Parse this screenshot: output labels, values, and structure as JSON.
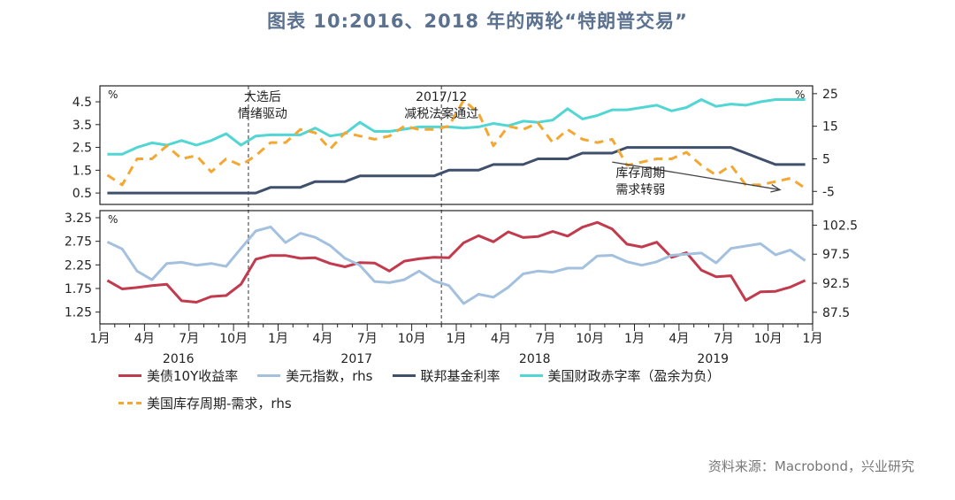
{
  "title": "图表 10:2016、2018 年的两轮“特朗普交易”",
  "source": "资料来源：Macrobond，兴业研究",
  "colors": {
    "treasury": "#c23a4d",
    "usd": "#a3c1df",
    "fed": "#3f4f6c",
    "deficit": "#52d6d4",
    "inventory": "#f2a832",
    "annotation": "#222222",
    "axis": "#222222",
    "title": "#5b7190",
    "source": "#777777"
  },
  "chart_data": [
    {
      "type": "line",
      "panel": "top",
      "left_axis": {
        "unit": "%",
        "ylim": [
          0.0,
          5.2
        ],
        "ticks": [
          "0.5",
          "1.5",
          "2.5",
          "3.5",
          "4.5"
        ]
      },
      "right_axis": {
        "unit": "%",
        "ylim": [
          -9.0,
          27.4
        ],
        "ticks": [
          "-5",
          "5",
          "15",
          "25"
        ]
      },
      "x": [
        "2016-01",
        "2016-02",
        "2016-03",
        "2016-04",
        "2016-05",
        "2016-06",
        "2016-07",
        "2016-08",
        "2016-09",
        "2016-10",
        "2016-11",
        "2016-12",
        "2017-01",
        "2017-02",
        "2017-03",
        "2017-04",
        "2017-05",
        "2017-06",
        "2017-07",
        "2017-08",
        "2017-09",
        "2017-10",
        "2017-11",
        "2017-12",
        "2018-01",
        "2018-02",
        "2018-03",
        "2018-04",
        "2018-05",
        "2018-06",
        "2018-07",
        "2018-08",
        "2018-09",
        "2018-10",
        "2018-11",
        "2018-12",
        "2019-01",
        "2019-02",
        "2019-03",
        "2019-04",
        "2019-05",
        "2019-06",
        "2019-07",
        "2019-08",
        "2019-09",
        "2019-10",
        "2019-11",
        "2019-12"
      ],
      "series": [
        {
          "name": "联邦基金利率",
          "axis": "left",
          "color_key": "fed",
          "values": [
            0.5,
            0.5,
            0.5,
            0.5,
            0.5,
            0.5,
            0.5,
            0.5,
            0.5,
            0.5,
            0.5,
            0.75,
            0.75,
            0.75,
            1.0,
            1.0,
            1.0,
            1.25,
            1.25,
            1.25,
            1.25,
            1.25,
            1.25,
            1.5,
            1.5,
            1.5,
            1.75,
            1.75,
            1.75,
            2.0,
            2.0,
            2.0,
            2.25,
            2.25,
            2.25,
            2.5,
            2.5,
            2.5,
            2.5,
            2.5,
            2.5,
            2.5,
            2.5,
            2.25,
            2.0,
            1.75,
            1.75,
            1.75
          ]
        },
        {
          "name": "美国财政赤字率（盈余为负）",
          "axis": "left",
          "color_key": "deficit",
          "values": [
            2.2,
            2.2,
            2.5,
            2.7,
            2.6,
            2.8,
            2.6,
            2.8,
            3.1,
            2.6,
            3.0,
            3.05,
            3.05,
            3.05,
            3.35,
            3.0,
            3.1,
            3.6,
            3.2,
            3.2,
            3.3,
            3.4,
            3.4,
            3.4,
            3.35,
            3.4,
            3.55,
            3.45,
            3.65,
            3.6,
            3.7,
            4.2,
            3.75,
            3.9,
            4.15,
            4.15,
            4.25,
            4.35,
            4.1,
            4.25,
            4.6,
            4.3,
            4.4,
            4.35,
            4.5,
            4.6,
            4.6,
            4.6
          ]
        },
        {
          "name": "美国库存周期-需求，rhs",
          "axis": "right",
          "color_key": "inventory",
          "values": [
            0,
            -3,
            5,
            5,
            9,
            5,
            6,
            1,
            5,
            3,
            6,
            10,
            10,
            14,
            13,
            8,
            13,
            12,
            11,
            12,
            15,
            14,
            14,
            15,
            23,
            19,
            9,
            15,
            14,
            16,
            10,
            14,
            11,
            10,
            11,
            3,
            4,
            5,
            5,
            7,
            3,
            0,
            3,
            -3,
            -3,
            -2,
            -1,
            -4
          ]
        }
      ],
      "annotations": [
        {
          "label": [
            "大选后",
            "情绪驱动"
          ],
          "at": "2016-11"
        },
        {
          "label": [
            "2017/12",
            "减税法案通过"
          ],
          "at": "2017-12"
        },
        {
          "label": [
            "库存周期",
            "需求转弱"
          ],
          "arrow_from": [
            "2018-11",
            4.0
          ],
          "arrow_to": [
            "2019-12",
            -4.5
          ]
        }
      ]
    },
    {
      "type": "line",
      "panel": "bottom",
      "left_axis": {
        "unit": "%",
        "ylim": [
          1.0,
          3.4
        ],
        "ticks": [
          "1.25",
          "1.75",
          "2.25",
          "2.75",
          "3.25"
        ]
      },
      "right_axis": {
        "ylim": [
          85.5,
          105.0
        ],
        "ticks": [
          "87.5",
          "92.5",
          "97.5",
          "102.5"
        ]
      },
      "x": [
        "2016-01",
        "2016-02",
        "2016-03",
        "2016-04",
        "2016-05",
        "2016-06",
        "2016-07",
        "2016-08",
        "2016-09",
        "2016-10",
        "2016-11",
        "2016-12",
        "2017-01",
        "2017-02",
        "2017-03",
        "2017-04",
        "2017-05",
        "2017-06",
        "2017-07",
        "2017-08",
        "2017-09",
        "2017-10",
        "2017-11",
        "2017-12",
        "2018-01",
        "2018-02",
        "2018-03",
        "2018-04",
        "2018-05",
        "2018-06",
        "2018-07",
        "2018-08",
        "2018-09",
        "2018-10",
        "2018-11",
        "2018-12",
        "2019-01",
        "2019-02",
        "2019-03",
        "2019-04",
        "2019-05",
        "2019-06",
        "2019-07",
        "2019-08",
        "2019-09",
        "2019-10",
        "2019-11",
        "2019-12"
      ],
      "series": [
        {
          "name": "美债10Y收益率",
          "axis": "left",
          "color_key": "treasury",
          "values": [
            1.92,
            1.74,
            1.77,
            1.81,
            1.84,
            1.49,
            1.46,
            1.58,
            1.6,
            1.84,
            2.37,
            2.45,
            2.45,
            2.39,
            2.4,
            2.28,
            2.21,
            2.3,
            2.29,
            2.12,
            2.33,
            2.38,
            2.41,
            2.4,
            2.72,
            2.87,
            2.74,
            2.95,
            2.83,
            2.85,
            2.96,
            2.86,
            3.05,
            3.15,
            3.01,
            2.69,
            2.63,
            2.73,
            2.41,
            2.51,
            2.14,
            2.0,
            2.02,
            1.5,
            1.68,
            1.69,
            1.78,
            1.92
          ]
        },
        {
          "name": "美元指数，rhs",
          "axis": "right",
          "color_key": "usd",
          "values": [
            99.6,
            98.4,
            94.6,
            93.1,
            95.9,
            96.1,
            95.6,
            95.9,
            95.4,
            98.5,
            101.5,
            102.2,
            99.5,
            101.1,
            100.4,
            99.0,
            96.8,
            95.6,
            92.8,
            92.6,
            93.1,
            94.6,
            92.9,
            92.1,
            89.0,
            90.6,
            90.1,
            91.8,
            94.1,
            94.6,
            94.4,
            95.1,
            95.1,
            97.2,
            97.3,
            96.2,
            95.6,
            96.2,
            97.3,
            97.5,
            97.7,
            96.0,
            98.5,
            98.9,
            99.3,
            97.4,
            98.2,
            96.4
          ]
        }
      ]
    }
  ],
  "x_axis": {
    "month_labels": [
      "1月",
      "4月",
      "7月",
      "10月",
      "1月",
      "4月",
      "7月",
      "10月",
      "1月",
      "4月",
      "7月",
      "10月",
      "1月",
      "4月",
      "7月",
      "10月",
      "1月"
    ],
    "year_labels": [
      "2016",
      "2017",
      "2018",
      "2019"
    ]
  },
  "legend": [
    {
      "name": "美债10Y收益率",
      "color_key": "treasury",
      "style": "solid"
    },
    {
      "name": "美元指数，rhs",
      "color_key": "usd",
      "style": "solid"
    },
    {
      "name": "联邦基金利率",
      "color_key": "fed",
      "style": "solid"
    },
    {
      "name": "美国财政赤字率（盈余为负）",
      "color_key": "deficit",
      "style": "solid"
    },
    {
      "name": "美国库存周期-需求，rhs",
      "color_key": "inventory",
      "style": "dashed"
    }
  ]
}
